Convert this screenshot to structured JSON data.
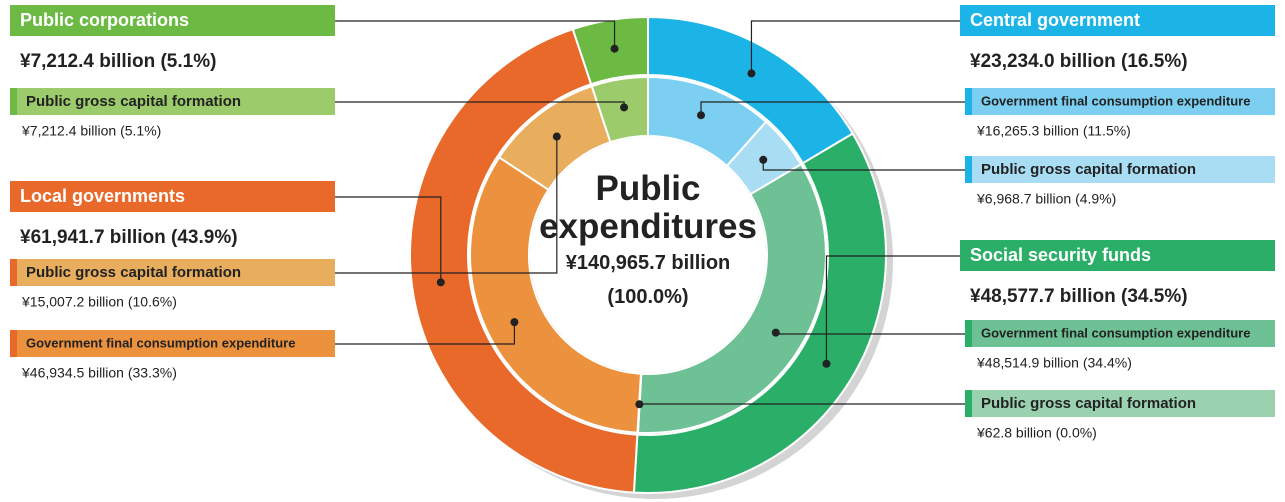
{
  "chart_data": {
    "type": "sunburst",
    "title": "Public expenditures",
    "total": {
      "value": 140965.7,
      "label": "¥140,965.7 billion",
      "share": 100.0,
      "share_label": "(100.0%)"
    },
    "groups": [
      {
        "name": "Central government",
        "color": "#1cb4e6",
        "value": 23234.0,
        "value_label": "¥23,234.0 billion (16.5%)",
        "children": [
          {
            "name": "Government final consumption expenditure",
            "color": "#7ccff1",
            "value": 16265.3,
            "value_label": "¥16,265.3 billion (11.5%)"
          },
          {
            "name": "Public gross capital formation",
            "color": "#a9ddf4",
            "value": 6968.7,
            "value_label": "¥6,968.7 billion (4.9%)"
          }
        ]
      },
      {
        "name": "Social security funds",
        "color": "#2aae68",
        "value": 48577.7,
        "value_label": "¥48,577.7 billion (34.5%)",
        "children": [
          {
            "name": "Government final consumption expenditure",
            "color": "#6dc194",
            "value": 48514.9,
            "value_label": "¥48,514.9 billion (34.4%)"
          },
          {
            "name": "Public gross capital formation",
            "color": "#9ad2b0",
            "value": 62.8,
            "value_label": "¥62.8 billion (0.0%)"
          }
        ]
      },
      {
        "name": "Local governments",
        "color": "#e8692a",
        "value": 61941.7,
        "value_label": "¥61,941.7 billion (43.9%)",
        "children": [
          {
            "name": "Government final consumption expenditure",
            "color": "#ec913d",
            "value": 46934.5,
            "value_label": "¥46,934.5 billion (33.3%)"
          },
          {
            "name": "Public gross capital formation",
            "color": "#e8ad5d",
            "value": 15007.2,
            "value_label": "¥15,007.2 billion (10.6%)"
          }
        ]
      },
      {
        "name": "Public corporations",
        "color": "#6cb944",
        "value": 7212.4,
        "value_label": "¥7,212.4 billion (5.1%)",
        "children": [
          {
            "name": "Public gross capital formation",
            "color": "#9ccb6c",
            "value": 7212.4,
            "value_label": "¥7,212.4 billion (5.1%)"
          }
        ]
      }
    ]
  }
}
